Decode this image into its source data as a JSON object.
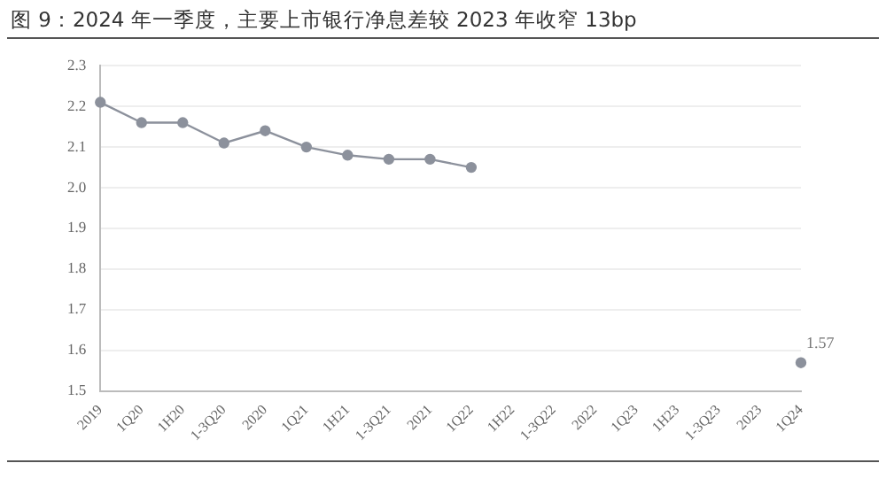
{
  "chart_data": {
    "type": "line",
    "title": "图 9：2024 年一季度，主要上市银行净息差较 2023 年收窄 13bp",
    "categories": [
      "2019",
      "1Q20",
      "1H20",
      "1-3Q20",
      "2020",
      "1Q21",
      "1H21",
      "1-3Q21",
      "2021",
      "1Q22",
      "1H22",
      "1-3Q22",
      "2022",
      "1Q23",
      "1H23",
      "1-3Q23",
      "2023",
      "1Q24"
    ],
    "series": [
      {
        "color": "#8c919c",
        "values": [
          2.21,
          2.16,
          2.16,
          2.11,
          2.14,
          2.1,
          2.08,
          2.07,
          2.07,
          2.05,
          null,
          null,
          null,
          null,
          null,
          null,
          null,
          1.57
        ],
        "value_labels": [
          null,
          null,
          null,
          null,
          null,
          null,
          null,
          null,
          null,
          null,
          null,
          null,
          null,
          null,
          null,
          null,
          null,
          "1.57"
        ]
      }
    ],
    "ylim": [
      1.5,
      2.3
    ],
    "yticks": [
      1.5,
      1.6,
      1.7,
      1.8,
      1.9,
      {
        "value": 2,
        "label": "2.0"
      },
      2.1,
      2.2,
      2.3
    ],
    "grid": "y",
    "marker": "circle",
    "line_style": "solid",
    "legend": false
  }
}
